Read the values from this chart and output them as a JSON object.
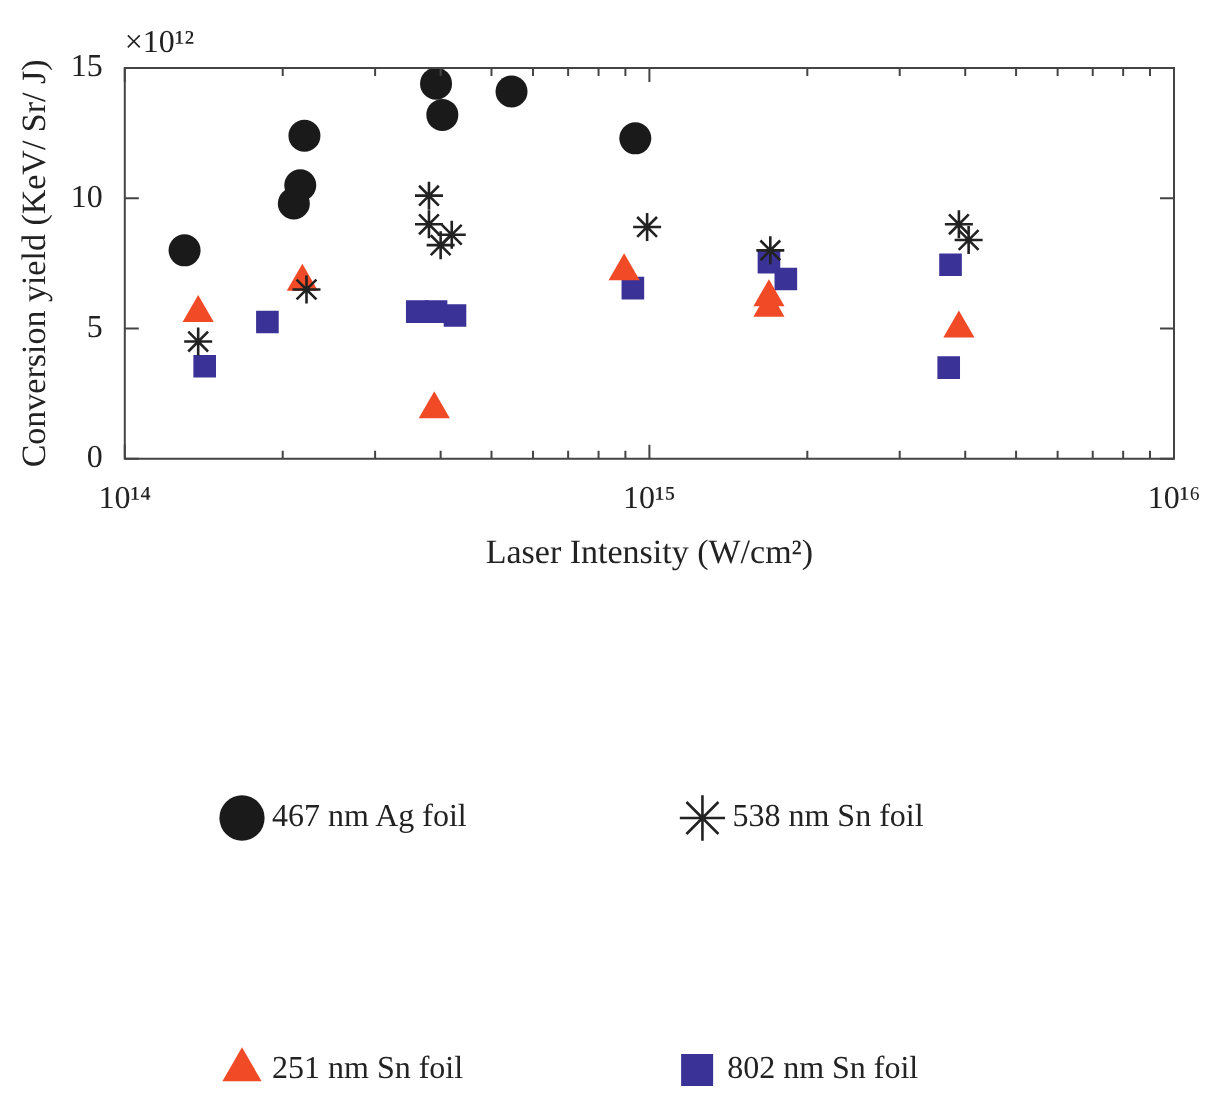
{
  "chart_data": {
    "type": "scatter",
    "xlabel": "Laser Intensity (W/cm²)",
    "ylabel": "Conversion yield (KeV/ Sr/ J)",
    "annotations": [
      "×10¹²"
    ],
    "log": "x",
    "grid": false,
    "legend": "bottom",
    "xlim": [
      100000000000000.0,
      1e+16
    ],
    "xticks": [
      {
        "value": 100000000000000.0,
        "label": "10¹⁴"
      },
      {
        "value": 200000000000000.0,
        "label": null
      },
      {
        "value": 300000000000000.0,
        "label": null
      },
      {
        "value": 400000000000000.0,
        "label": null
      },
      {
        "value": 500000000000000.0,
        "label": null
      },
      {
        "value": 600000000000000.0,
        "label": null
      },
      {
        "value": 700000000000000.0,
        "label": null
      },
      {
        "value": 800000000000000.0,
        "label": null
      },
      {
        "value": 900000000000000.0,
        "label": null
      },
      {
        "value": 1000000000000000.0,
        "label": "10¹⁵"
      },
      {
        "value": 2000000000000000.0,
        "label": null
      },
      {
        "value": 3000000000000000.0,
        "label": null
      },
      {
        "value": 4000000000000000.0,
        "label": null
      },
      {
        "value": 5000000000000000.0,
        "label": null
      },
      {
        "value": 6000000000000000.0,
        "label": null
      },
      {
        "value": 7000000000000000.0,
        "label": null
      },
      {
        "value": 8000000000000000.0,
        "label": null
      },
      {
        "value": 9000000000000000.0,
        "label": null
      },
      {
        "value": 1e+16,
        "label": "10¹⁶"
      }
    ],
    "ylim": [
      0,
      15
    ],
    "yticks": [
      0,
      5,
      10,
      15
    ],
    "series": [
      {
        "name": "467 nm Ag foil",
        "color": "#1a1a1a",
        "marker": "circle",
        "x": [
          130000000000000.0,
          220000000000000.0,
          216000000000000.0,
          210000000000000.0,
          392000000000000.0,
          403000000000000.0,
          546000000000000.0,
          940000000000000.0
        ],
        "values": [
          8.0,
          12.4,
          10.5,
          9.8,
          14.4,
          13.2,
          14.1,
          12.3
        ]
      },
      {
        "name": "538 nm Sn foil",
        "color": "#222222",
        "marker": "cross",
        "x": [
          138000000000000.0,
          222000000000000.0,
          380000000000000.0,
          380000000000000.0,
          420000000000000.0,
          400000000000000.0,
          990000000000000.0,
          1700000000000000.0,
          3890000000000000.0,
          4060000000000000.0
        ],
        "values": [
          4.5,
          6.5,
          10.1,
          9.0,
          8.6,
          8.2,
          8.9,
          8.0,
          9.0,
          8.4
        ]
      },
      {
        "name": "251 nm Sn foil",
        "color": "#f04a26",
        "marker": "triangle",
        "x": [
          138000000000000.0,
          218000000000000.0,
          389000000000000.0,
          895000000000000.0,
          1690000000000000.0,
          1690000000000000.0,
          3890000000000000.0
        ],
        "values": [
          5.6,
          6.8,
          1.9,
          7.2,
          6.2,
          5.8,
          5.0
        ]
      },
      {
        "name": "802 nm Sn foil",
        "color": "#3a3297",
        "marker": "square",
        "x": [
          142000000000000.0,
          187000000000000.0,
          361000000000000.0,
          392000000000000.0,
          426000000000000.0,
          930000000000000.0,
          1690000000000000.0,
          1820000000000000.0,
          3750000000000000.0,
          3720000000000000.0
        ],
        "values": [
          3.55,
          5.25,
          5.65,
          5.65,
          5.5,
          6.55,
          7.55,
          6.9,
          7.45,
          3.5
        ]
      }
    ]
  }
}
